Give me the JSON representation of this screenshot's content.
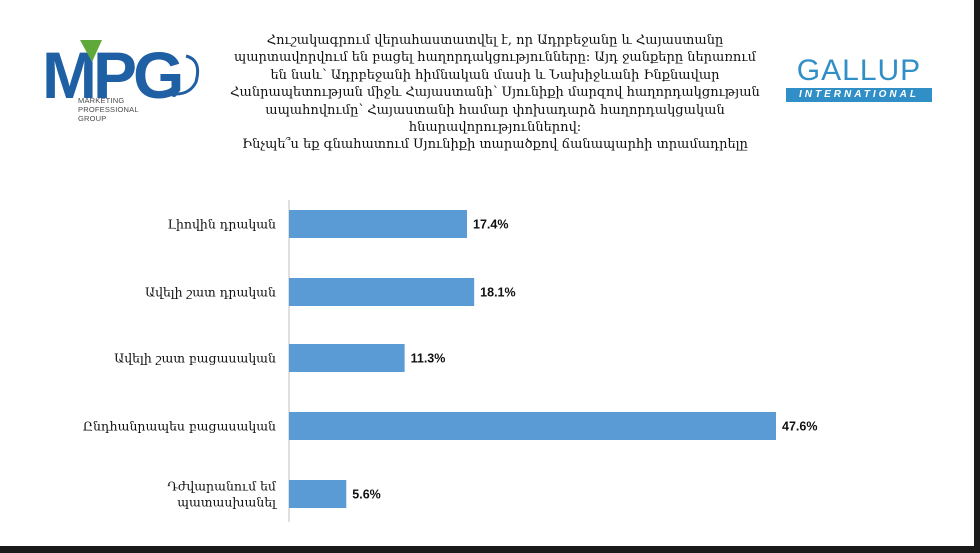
{
  "logos": {
    "mpg": {
      "letters": "MPG",
      "tagline": [
        "MARKETING",
        "PROFESSIONAL",
        "GROUP"
      ],
      "color_blue": "#1f5fa3",
      "color_green": "#5fa83a"
    },
    "gallup": {
      "name": "GALLUP",
      "subtitle": "INTERNATIONAL",
      "color": "#2f8fc6"
    }
  },
  "question_lines": [
    "Հուշակագրում վերահաստատվել է, որ Ադրբեջանը և Հայաստանը",
    "պարտավորվում են բացել հաղորդակցությունները: Այդ ջանքերը ներառում",
    "են նաև՝ Ադրբեջանի հիմնական մասի և Նախիջևանի Ինքնավար",
    "Հանրապետության միջև Հայաստանի՝ Սյունիքի մարզով հաղորդակցության",
    "ապահովումը՝ Հայաստանի համար փոխադարձ հաղորդակցական",
    "հնարավորություններով:",
    "Ինչպե՞ս եք գնահատում Սյունիքի տարածքով ճանապարհի տրամադրելը"
  ],
  "chart_data": {
    "type": "bar",
    "orientation": "horizontal",
    "categories": [
      [
        "Լիովին դրական"
      ],
      [
        "Ավելի շատ դրական"
      ],
      [
        "Ավելի շատ բացասական"
      ],
      [
        "Ընդհանրապես բացասական"
      ],
      [
        "Դժվարանում եմ",
        "պատասխանել"
      ]
    ],
    "values": [
      17.4,
      18.1,
      11.3,
      47.6,
      5.6
    ],
    "value_labels": [
      "17.4%",
      "18.1%",
      "11.3%",
      "47.6%",
      "5.6%"
    ],
    "xlim": [
      0,
      50
    ],
    "grid": false,
    "bar_color": "#5b9bd5",
    "axis_color": "#bfbfbf"
  }
}
